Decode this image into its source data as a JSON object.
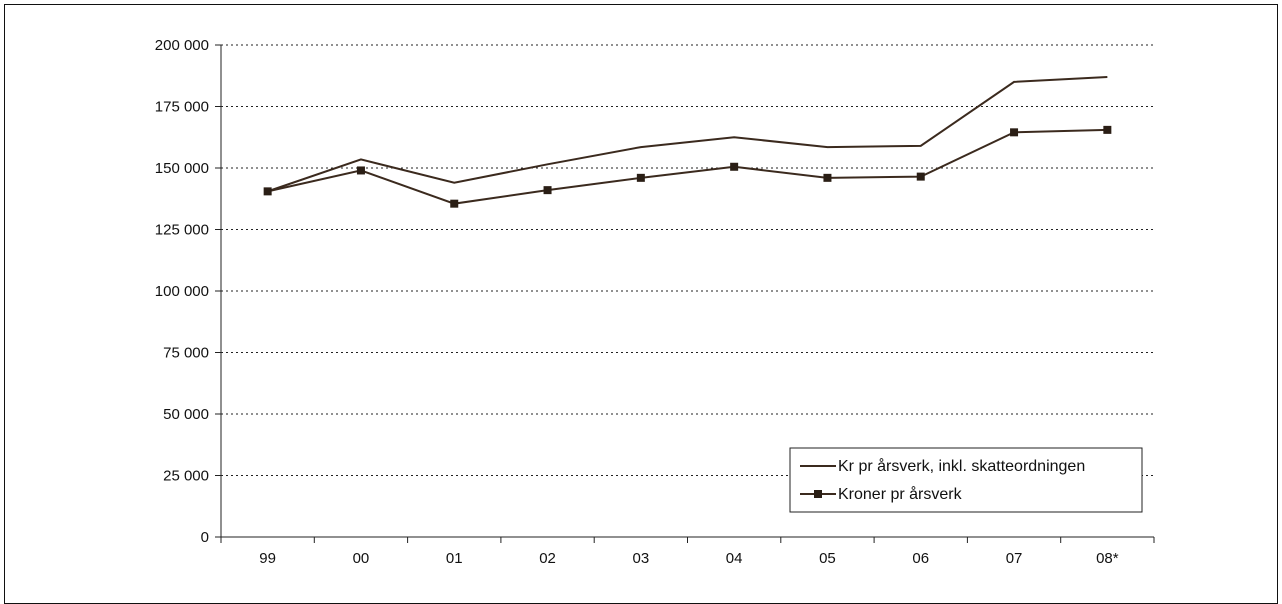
{
  "chart_data": {
    "type": "line",
    "title": "",
    "xlabel": "",
    "ylabel": "",
    "categories": [
      "99",
      "00",
      "01",
      "02",
      "03",
      "04",
      "05",
      "06",
      "07",
      "08*"
    ],
    "ylim": [
      0,
      200000
    ],
    "yticks": [
      0,
      25000,
      50000,
      75000,
      100000,
      125000,
      150000,
      175000,
      200000
    ],
    "ytick_labels": [
      "0",
      "25 000",
      "50 000",
      "75 000",
      "100 000",
      "125 000",
      "150 000",
      "175 000",
      "200 000"
    ],
    "grid": "horizontal dotted",
    "legend_position": "bottom-right",
    "series": [
      {
        "name": "Kr pr årsverk, inkl. skatteordningen",
        "marker": "none",
        "color": "#3b2a1e",
        "values": [
          140500,
          153500,
          144000,
          151500,
          158500,
          162500,
          158500,
          159000,
          185000,
          187000
        ]
      },
      {
        "name": "Kroner pr årsverk",
        "marker": "square",
        "color": "#3b2a1e",
        "values": [
          140500,
          149000,
          135500,
          141000,
          146000,
          150500,
          146000,
          146500,
          164500,
          165500
        ]
      }
    ]
  }
}
